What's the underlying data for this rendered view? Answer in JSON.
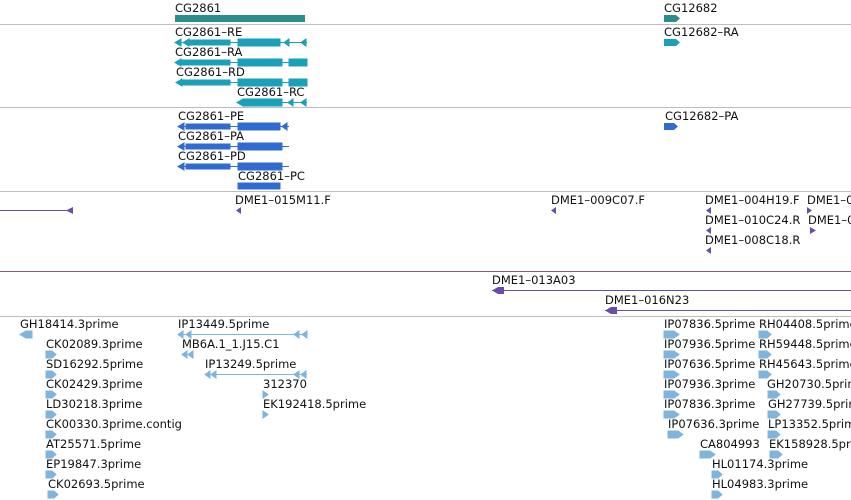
{
  "colors": {
    "gene": "#2a8e8a",
    "transcript_mod": "#1aa0b8",
    "transcript_ref": "#2f6bd0",
    "clone": "#6a4da8",
    "est": "#7fb4dc",
    "separator": "#bdbdbd"
  },
  "tracks": {
    "genes": [
      {
        "label": "CG2861"
      },
      {
        "label": "CG12682"
      }
    ],
    "transcripts_mod": [
      {
        "label": "CG2861–RE"
      },
      {
        "label": "CG2861–RA"
      },
      {
        "label": "CG2861–RD"
      },
      {
        "label": "CG2861–RC"
      },
      {
        "label": "CG12682–RA"
      }
    ],
    "transcripts_ref": [
      {
        "label": "CG2861–PE"
      },
      {
        "label": "CG2861–PA"
      },
      {
        "label": "CG2861–PD"
      },
      {
        "label": "CG2861–PC"
      },
      {
        "label": "CG12682–PA"
      }
    ],
    "bac_ends": [
      {
        "label": "DME1–015M11.F"
      },
      {
        "label": "DME1–009C07.F"
      },
      {
        "label": "DME1–004H19.F"
      },
      {
        "label": "DME1–0"
      },
      {
        "label": "DME1–010C24.R"
      },
      {
        "label": "DME1–0"
      },
      {
        "label": "DME1–008C18.R"
      }
    ],
    "bac_clones": [
      {
        "label": "DME1–013A03"
      },
      {
        "label": "DME1–016N23"
      }
    ],
    "ests": [
      {
        "label": "GH18414.3prime"
      },
      {
        "label": "CK02089.3prime"
      },
      {
        "label": "SD16292.5prime"
      },
      {
        "label": "CK02429.3prime"
      },
      {
        "label": "LD30218.3prime"
      },
      {
        "label": "CK00330.3prime.contig"
      },
      {
        "label": "AT25571.5prime"
      },
      {
        "label": "EP19847.3prime"
      },
      {
        "label": "CK02693.5prime"
      },
      {
        "label": "IP13449.5prime"
      },
      {
        "label": "MB6A.1_1.J15.C1"
      },
      {
        "label": "IP13249.5prime"
      },
      {
        "label": "312370"
      },
      {
        "label": "EK192418.5prime"
      },
      {
        "label": "IP07836.5prime"
      },
      {
        "label": "IP07936.5prime"
      },
      {
        "label": "IP07636.5prime"
      },
      {
        "label": "IP07936.3prime"
      },
      {
        "label": "IP07836.3prime"
      },
      {
        "label": "IP07636.3prime"
      },
      {
        "label": "CA804993"
      },
      {
        "label": "HL01174.3prime"
      },
      {
        "label": "HL04983.3prime"
      },
      {
        "label": "RH04408.5prime"
      },
      {
        "label": "RH59448.5prime"
      },
      {
        "label": "RH45643.5prime"
      },
      {
        "label": "GH20730.5prime"
      },
      {
        "label": "GH27739.5prime"
      },
      {
        "label": "LP13352.5prime"
      },
      {
        "label": "EK158928.5prime"
      }
    ]
  }
}
